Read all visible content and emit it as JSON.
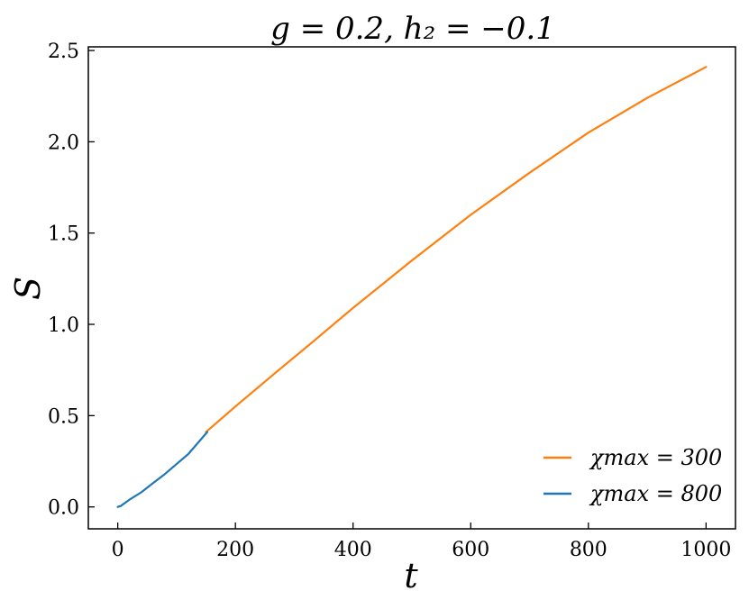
{
  "chart_data": {
    "type": "line",
    "title": "g = 0.2, h₂ = −0.1",
    "xlabel": "t",
    "ylabel": "S",
    "xlim": [
      -50,
      1050
    ],
    "ylim": [
      -0.12,
      2.52
    ],
    "xticks": [
      0,
      200,
      400,
      600,
      800,
      1000
    ],
    "xtick_labels": [
      "0",
      "200",
      "400",
      "600",
      "800",
      "1000"
    ],
    "yticks": [
      0.0,
      0.5,
      1.0,
      1.5,
      2.0,
      2.5
    ],
    "ytick_labels": [
      "0.0",
      "0.5",
      "1.0",
      "1.5",
      "2.0",
      "2.5"
    ],
    "grid": false,
    "legend_position": "bottom-right",
    "series": [
      {
        "name": "χmax = 300",
        "color": "#ff7f0e",
        "x": [
          150,
          200,
          270,
          330,
          400,
          500,
          600,
          700,
          800,
          900,
          1000
        ],
        "y": [
          0.41,
          0.55,
          0.74,
          0.9,
          1.09,
          1.35,
          1.6,
          1.83,
          2.05,
          2.24,
          2.41
        ]
      },
      {
        "name": "χmax = 800",
        "color": "#1f77b4",
        "x": [
          0,
          5,
          20,
          40,
          60,
          80,
          100,
          120,
          152
        ],
        "y": [
          0.0,
          0.005,
          0.04,
          0.08,
          0.13,
          0.18,
          0.235,
          0.29,
          0.41
        ]
      }
    ],
    "legend": [
      {
        "label": "χmax = 300",
        "color": "#ff7f0e"
      },
      {
        "label": "χmax = 800",
        "color": "#1f77b4"
      }
    ]
  }
}
